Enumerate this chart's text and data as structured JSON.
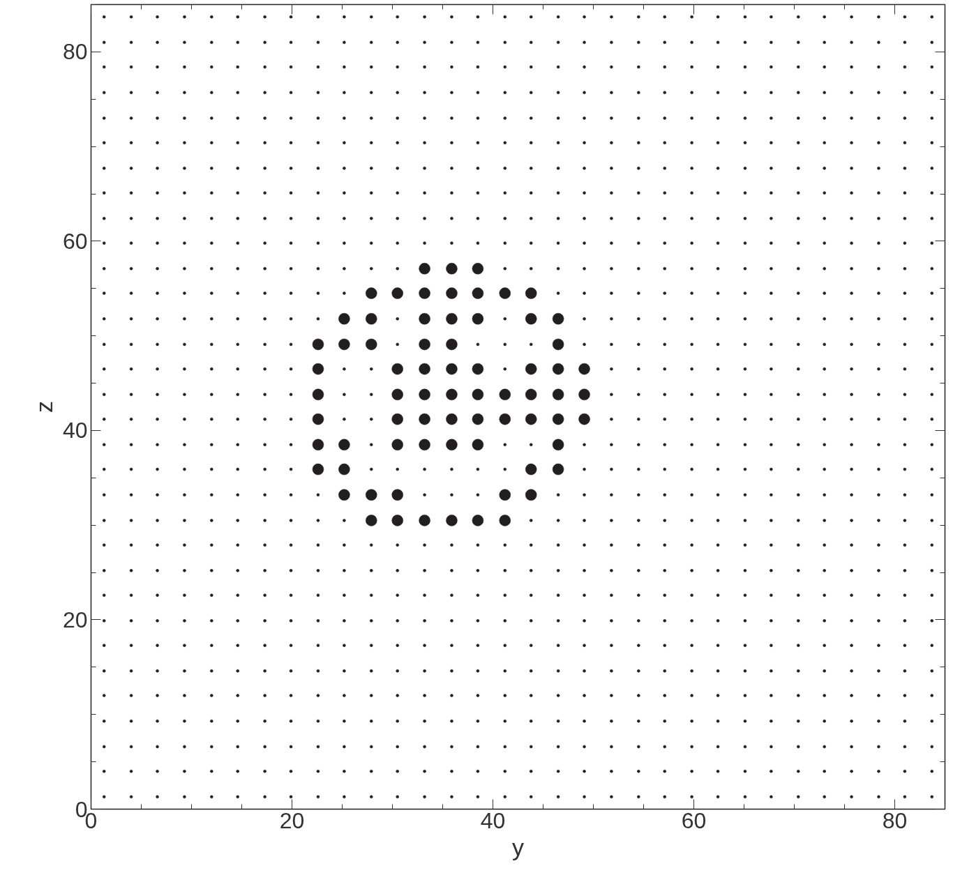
{
  "chart_data": {
    "type": "scatter",
    "xlabel": "y",
    "ylabel": "z",
    "xlim": [
      0,
      85
    ],
    "ylim": [
      0,
      85
    ],
    "xticks": [
      0,
      {
        "value": 5,
        "label": null
      },
      {
        "value": 10,
        "label": null
      },
      {
        "value": 15,
        "label": null
      },
      20,
      {
        "value": 25,
        "label": null
      },
      {
        "value": 30,
        "label": null
      },
      {
        "value": 35,
        "label": null
      },
      40,
      {
        "value": 45,
        "label": null
      },
      {
        "value": 50,
        "label": null
      },
      {
        "value": 55,
        "label": null
      },
      60,
      {
        "value": 65,
        "label": null
      },
      {
        "value": 70,
        "label": null
      },
      {
        "value": 75,
        "label": null
      },
      80,
      {
        "value": 85,
        "label": null
      }
    ],
    "yticks": [
      0,
      {
        "value": 5,
        "label": null
      },
      {
        "value": 10,
        "label": null
      },
      {
        "value": 15,
        "label": null
      },
      20,
      {
        "value": 25,
        "label": null
      },
      {
        "value": 30,
        "label": null
      },
      {
        "value": 35,
        "label": null
      },
      40,
      {
        "value": 45,
        "label": null
      },
      {
        "value": 50,
        "label": null
      },
      {
        "value": 55,
        "label": null
      },
      60,
      {
        "value": 65,
        "label": null
      },
      {
        "value": 70,
        "label": null
      },
      {
        "value": 75,
        "label": null
      },
      80,
      {
        "value": 85,
        "label": null
      }
    ],
    "series": [
      {
        "color": "#231f20",
        "x": [
          1.3,
          4.0,
          6.6,
          9.3,
          12.0,
          14.6,
          17.3,
          19.9,
          22.6,
          25.2,
          27.9,
          30.5,
          33.2,
          35.9,
          38.5,
          41.2,
          43.8,
          46.5,
          49.1,
          51.8,
          54.5,
          57.1,
          59.8,
          62.4,
          65.1,
          67.7,
          70.4,
          73.0,
          75.7,
          78.4,
          81.0,
          83.7
        ],
        "values": [
          1.3,
          1.3,
          1.3,
          1.3,
          1.3,
          1.3,
          1.3,
          1.3,
          1.3,
          1.3,
          1.3,
          1.3,
          1.3,
          1.3,
          1.3,
          1.3,
          1.3,
          1.3,
          1.3,
          1.3,
          1.3,
          1.3,
          1.3,
          1.3,
          1.3,
          1.3,
          1.3,
          1.3,
          1.3,
          1.3,
          1.3,
          1.3
        ]
      },
      {
        "color": "#231f20",
        "x": [
          1.3,
          4.0,
          6.6,
          9.3,
          12.0,
          14.6,
          17.3,
          19.9,
          22.6,
          25.2,
          27.9,
          30.5,
          33.2,
          35.9,
          38.5,
          41.2,
          43.8,
          46.5,
          49.1,
          51.8,
          54.5,
          57.1,
          59.8,
          62.4,
          65.1,
          67.7,
          70.4,
          73.0,
          75.7,
          78.4,
          81.0,
          83.7
        ],
        "values": [
          4.0,
          4.0,
          4.0,
          4.0,
          4.0,
          4.0,
          4.0,
          4.0,
          4.0,
          4.0,
          4.0,
          4.0,
          4.0,
          4.0,
          4.0,
          4.0,
          4.0,
          4.0,
          4.0,
          4.0,
          4.0,
          4.0,
          4.0,
          4.0,
          4.0,
          4.0,
          4.0,
          4.0,
          4.0,
          4.0,
          4.0,
          4.0
        ]
      },
      {
        "color": "#231f20",
        "x": [
          1.3,
          4.0,
          6.6,
          9.3,
          12.0,
          14.6,
          17.3,
          19.9,
          22.6,
          25.2,
          27.9,
          30.5,
          33.2,
          35.9,
          38.5,
          41.2,
          43.8,
          46.5,
          49.1,
          51.8,
          54.5,
          57.1,
          59.8,
          62.4,
          65.1,
          67.7,
          70.4,
          73.0,
          75.7,
          78.4,
          81.0,
          83.7
        ],
        "values": [
          6.6,
          6.6,
          6.6,
          6.6,
          6.6,
          6.6,
          6.6,
          6.6,
          6.6,
          6.6,
          6.6,
          6.6,
          6.6,
          6.6,
          6.6,
          6.6,
          6.6,
          6.6,
          6.6,
          6.6,
          6.6,
          6.6,
          6.6,
          6.6,
          6.6,
          6.6,
          6.6,
          6.6,
          6.6,
          6.6,
          6.6,
          6.6
        ]
      },
      {
        "color": "#231f20",
        "x": [
          1.3,
          4.0,
          6.6,
          9.3,
          12.0,
          14.6,
          17.3,
          19.9,
          22.6,
          25.2,
          27.9,
          30.5,
          33.2,
          35.9,
          38.5,
          41.2,
          43.8,
          46.5,
          49.1,
          51.8,
          54.5,
          57.1,
          59.8,
          62.4,
          65.1,
          67.7,
          70.4,
          73.0,
          75.7,
          78.4,
          81.0,
          83.7
        ],
        "values": [
          9.3,
          9.3,
          9.3,
          9.3,
          9.3,
          9.3,
          9.3,
          9.3,
          9.3,
          9.3,
          9.3,
          9.3,
          9.3,
          9.3,
          9.3,
          9.3,
          9.3,
          9.3,
          9.3,
          9.3,
          9.3,
          9.3,
          9.3,
          9.3,
          9.3,
          9.3,
          9.3,
          9.3,
          9.3,
          9.3,
          9.3,
          9.3
        ]
      },
      {
        "color": "#231f20",
        "x": [
          1.3,
          4.0,
          6.6,
          9.3,
          12.0,
          14.6,
          17.3,
          19.9,
          22.6,
          25.2,
          27.9,
          30.5,
          33.2,
          35.9,
          38.5,
          41.2,
          43.8,
          46.5,
          49.1,
          51.8,
          54.5,
          57.1,
          59.8,
          62.4,
          65.1,
          67.7,
          70.4,
          73.0,
          75.7,
          78.4,
          81.0,
          83.7
        ],
        "values": [
          12.0,
          12.0,
          12.0,
          12.0,
          12.0,
          12.0,
          12.0,
          12.0,
          12.0,
          12.0,
          12.0,
          12.0,
          12.0,
          12.0,
          12.0,
          12.0,
          12.0,
          12.0,
          12.0,
          12.0,
          12.0,
          12.0,
          12.0,
          12.0,
          12.0,
          12.0,
          12.0,
          12.0,
          12.0,
          12.0,
          12.0,
          12.0
        ]
      },
      {
        "color": "#231f20",
        "x": [
          1.3,
          4.0,
          6.6,
          9.3,
          12.0,
          14.6,
          17.3,
          19.9,
          22.6,
          25.2,
          27.9,
          30.5,
          33.2,
          35.9,
          38.5,
          41.2,
          43.8,
          46.5,
          49.1,
          51.8,
          54.5,
          57.1,
          59.8,
          62.4,
          65.1,
          67.7,
          70.4,
          73.0,
          75.7,
          78.4,
          81.0,
          83.7
        ],
        "values": [
          14.6,
          14.6,
          14.6,
          14.6,
          14.6,
          14.6,
          14.6,
          14.6,
          14.6,
          14.6,
          14.6,
          14.6,
          14.6,
          14.6,
          14.6,
          14.6,
          14.6,
          14.6,
          14.6,
          14.6,
          14.6,
          14.6,
          14.6,
          14.6,
          14.6,
          14.6,
          14.6,
          14.6,
          14.6,
          14.6,
          14.6,
          14.6
        ]
      },
      {
        "color": "#231f20",
        "x": [
          1.3,
          4.0,
          6.6,
          9.3,
          12.0,
          14.6,
          17.3,
          19.9,
          22.6,
          25.2,
          27.9,
          30.5,
          33.2,
          35.9,
          38.5,
          41.2,
          43.8,
          46.5,
          49.1,
          51.8,
          54.5,
          57.1,
          59.8,
          62.4,
          65.1,
          67.7,
          70.4,
          73.0,
          75.7,
          78.4,
          81.0,
          83.7
        ],
        "values": [
          17.3,
          17.3,
          17.3,
          17.3,
          17.3,
          17.3,
          17.3,
          17.3,
          17.3,
          17.3,
          17.3,
          17.3,
          17.3,
          17.3,
          17.3,
          17.3,
          17.3,
          17.3,
          17.3,
          17.3,
          17.3,
          17.3,
          17.3,
          17.3,
          17.3,
          17.3,
          17.3,
          17.3,
          17.3,
          17.3,
          17.3,
          17.3
        ]
      },
      {
        "color": "#231f20",
        "x": [
          1.3,
          4.0,
          6.6,
          9.3,
          12.0,
          14.6,
          17.3,
          19.9,
          22.6,
          25.2,
          27.9,
          30.5,
          33.2,
          35.9,
          38.5,
          41.2,
          43.8,
          46.5,
          49.1,
          51.8,
          54.5,
          57.1,
          59.8,
          62.4,
          65.1,
          67.7,
          70.4,
          73.0,
          75.7,
          78.4,
          81.0,
          83.7
        ],
        "values": [
          19.9,
          19.9,
          19.9,
          19.9,
          19.9,
          19.9,
          19.9,
          19.9,
          19.9,
          19.9,
          19.9,
          19.9,
          19.9,
          19.9,
          19.9,
          19.9,
          19.9,
          19.9,
          19.9,
          19.9,
          19.9,
          19.9,
          19.9,
          19.9,
          19.9,
          19.9,
          19.9,
          19.9,
          19.9,
          19.9,
          19.9,
          19.9
        ]
      },
      {
        "color": "#231f20",
        "x": [
          1.3,
          4.0,
          6.6,
          9.3,
          12.0,
          14.6,
          17.3,
          19.9,
          22.6,
          25.2,
          27.9,
          30.5,
          33.2,
          35.9,
          38.5,
          41.2,
          43.8,
          46.5,
          49.1,
          51.8,
          54.5,
          57.1,
          59.8,
          62.4,
          65.1,
          67.7,
          70.4,
          73.0,
          75.7,
          78.4,
          81.0,
          83.7
        ],
        "values": [
          22.6,
          22.6,
          22.6,
          22.6,
          22.6,
          22.6,
          22.6,
          22.6,
          22.6,
          22.6,
          22.6,
          22.6,
          22.6,
          22.6,
          22.6,
          22.6,
          22.6,
          22.6,
          22.6,
          22.6,
          22.6,
          22.6,
          22.6,
          22.6,
          22.6,
          22.6,
          22.6,
          22.6,
          22.6,
          22.6,
          22.6,
          22.6
        ]
      },
      {
        "color": "#231f20",
        "x": [
          1.3,
          4.0,
          6.6,
          9.3,
          12.0,
          14.6,
          17.3,
          19.9,
          22.6,
          25.2,
          27.9,
          30.5,
          33.2,
          35.9,
          38.5,
          41.2,
          43.8,
          46.5,
          49.1,
          51.8,
          54.5,
          57.1,
          59.8,
          62.4,
          65.1,
          67.7,
          70.4,
          73.0,
          75.7,
          78.4,
          81.0,
          83.7
        ],
        "values": [
          25.2,
          25.2,
          25.2,
          25.2,
          25.2,
          25.2,
          25.2,
          25.2,
          25.2,
          25.2,
          25.2,
          25.2,
          25.2,
          25.2,
          25.2,
          25.2,
          25.2,
          25.2,
          25.2,
          25.2,
          25.2,
          25.2,
          25.2,
          25.2,
          25.2,
          25.2,
          25.2,
          25.2,
          25.2,
          25.2,
          25.2,
          25.2
        ]
      },
      {
        "color": "#231f20",
        "x": [
          1.3,
          4.0,
          6.6,
          9.3,
          12.0,
          14.6,
          17.3,
          19.9,
          22.6,
          25.2,
          27.9,
          30.5,
          33.2,
          35.9,
          38.5,
          41.2,
          43.8,
          46.5,
          49.1,
          51.8,
          54.5,
          57.1,
          59.8,
          62.4,
          65.1,
          67.7,
          70.4,
          73.0,
          75.7,
          78.4,
          81.0,
          83.7
        ],
        "values": [
          27.9,
          27.9,
          27.9,
          27.9,
          27.9,
          27.9,
          27.9,
          27.9,
          27.9,
          27.9,
          27.9,
          27.9,
          27.9,
          27.9,
          27.9,
          27.9,
          27.9,
          27.9,
          27.9,
          27.9,
          27.9,
          27.9,
          27.9,
          27.9,
          27.9,
          27.9,
          27.9,
          27.9,
          27.9,
          27.9,
          27.9,
          27.9
        ]
      },
      {
        "color": "#231f20",
        "x": [
          1.3,
          4.0,
          6.6,
          9.3,
          12.0,
          14.6,
          17.3,
          19.9,
          22.6,
          25.2,
          43.8,
          46.5,
          49.1,
          51.8,
          54.5,
          57.1,
          59.8,
          62.4,
          65.1,
          67.7,
          70.4,
          73.0,
          75.7,
          78.4,
          81.0,
          83.7
        ],
        "values": [
          30.5,
          30.5,
          30.5,
          30.5,
          30.5,
          30.5,
          30.5,
          30.5,
          30.5,
          30.5,
          30.5,
          30.5,
          30.5,
          30.5,
          30.5,
          30.5,
          30.5,
          30.5,
          30.5,
          30.5,
          30.5,
          30.5,
          30.5,
          30.5,
          30.5,
          30.5
        ]
      },
      {
        "color": "#231f20",
        "x": [
          1.3,
          4.0,
          6.6,
          9.3,
          12.0,
          14.6,
          17.3,
          19.9,
          22.6,
          46.5,
          49.1,
          51.8,
          54.5,
          57.1,
          59.8,
          62.4,
          65.1,
          67.7,
          70.4,
          73.0,
          75.7,
          78.4,
          81.0,
          83.7
        ],
        "values": [
          33.2,
          33.2,
          33.2,
          33.2,
          33.2,
          33.2,
          33.2,
          33.2,
          33.2,
          33.2,
          33.2,
          33.2,
          33.2,
          33.2,
          33.2,
          33.2,
          33.2,
          33.2,
          33.2,
          33.2,
          33.2,
          33.2,
          33.2,
          33.2
        ]
      },
      {
        "color": "#231f20",
        "x": [
          1.3,
          4.0,
          6.6,
          9.3,
          12.0,
          14.6,
          17.3,
          19.9,
          49.1,
          51.8,
          54.5,
          57.1,
          59.8,
          62.4,
          65.1,
          67.7,
          70.4,
          73.0,
          75.7,
          78.4,
          81.0,
          83.7
        ],
        "values": [
          35.9,
          35.9,
          35.9,
          35.9,
          35.9,
          35.9,
          35.9,
          35.9,
          35.9,
          35.9,
          35.9,
          35.9,
          35.9,
          35.9,
          35.9,
          35.9,
          35.9,
          35.9,
          35.9,
          35.9,
          35.9,
          35.9
        ]
      },
      {
        "color": "#231f20",
        "x": [
          1.3,
          4.0,
          6.6,
          9.3,
          12.0,
          14.6,
          17.3,
          19.9,
          49.1,
          51.8,
          54.5,
          57.1,
          59.8,
          62.4,
          65.1,
          67.7,
          70.4,
          73.0,
          75.7,
          78.4,
          81.0,
          83.7
        ],
        "values": [
          38.5,
          38.5,
          38.5,
          38.5,
          38.5,
          38.5,
          38.5,
          38.5,
          38.5,
          38.5,
          38.5,
          38.5,
          38.5,
          38.5,
          38.5,
          38.5,
          38.5,
          38.5,
          38.5,
          38.5,
          38.5,
          38.5
        ]
      },
      {
        "color": "#231f20",
        "x": [
          1.3,
          4.0,
          6.6,
          9.3,
          12.0,
          14.6,
          17.3,
          19.9,
          51.8,
          54.5,
          57.1,
          59.8,
          62.4,
          65.1,
          67.7,
          70.4,
          73.0,
          75.7,
          78.4,
          81.0,
          83.7
        ],
        "values": [
          41.2,
          41.2,
          41.2,
          41.2,
          41.2,
          41.2,
          41.2,
          41.2,
          41.2,
          41.2,
          41.2,
          41.2,
          41.2,
          41.2,
          41.2,
          41.2,
          41.2,
          41.2,
          41.2,
          41.2,
          41.2
        ]
      },
      {
        "color": "#231f20",
        "x": [
          1.3,
          4.0,
          6.6,
          9.3,
          12.0,
          14.6,
          17.3,
          19.9,
          51.8,
          54.5,
          57.1,
          59.8,
          62.4,
          65.1,
          67.7,
          70.4,
          73.0,
          75.7,
          78.4,
          81.0,
          83.7
        ],
        "values": [
          43.8,
          43.8,
          43.8,
          43.8,
          43.8,
          43.8,
          43.8,
          43.8,
          43.8,
          43.8,
          43.8,
          43.8,
          43.8,
          43.8,
          43.8,
          43.8,
          43.8,
          43.8,
          43.8,
          43.8,
          43.8
        ]
      },
      {
        "color": "#231f20",
        "x": [
          1.3,
          4.0,
          6.6,
          9.3,
          12.0,
          14.6,
          17.3,
          19.9,
          51.8,
          54.5,
          57.1,
          59.8,
          62.4,
          65.1,
          67.7,
          70.4,
          73.0,
          75.7,
          78.4,
          81.0,
          83.7
        ],
        "values": [
          46.5,
          46.5,
          46.5,
          46.5,
          46.5,
          46.5,
          46.5,
          46.5,
          46.5,
          46.5,
          46.5,
          46.5,
          46.5,
          46.5,
          46.5,
          46.5,
          46.5,
          46.5,
          46.5,
          46.5,
          46.5
        ]
      },
      {
        "color": "#231f20",
        "x": [
          1.3,
          4.0,
          6.6,
          9.3,
          12.0,
          14.6,
          17.3,
          19.9,
          49.1,
          51.8,
          54.5,
          57.1,
          59.8,
          62.4,
          65.1,
          67.7,
          70.4,
          73.0,
          75.7,
          78.4,
          81.0,
          83.7
        ],
        "values": [
          49.1,
          49.1,
          49.1,
          49.1,
          49.1,
          49.1,
          49.1,
          49.1,
          49.1,
          49.1,
          49.1,
          49.1,
          49.1,
          49.1,
          49.1,
          49.1,
          49.1,
          49.1,
          49.1,
          49.1,
          49.1,
          49.1
        ]
      },
      {
        "color": "#231f20",
        "x": [
          1.3,
          4.0,
          6.6,
          9.3,
          12.0,
          14.6,
          17.3,
          19.9,
          22.6,
          49.1,
          51.8,
          54.5,
          57.1,
          59.8,
          62.4,
          65.1,
          67.7,
          70.4,
          73.0,
          75.7,
          78.4,
          81.0,
          83.7
        ],
        "values": [
          51.8,
          51.8,
          51.8,
          51.8,
          51.8,
          51.8,
          51.8,
          51.8,
          51.8,
          51.8,
          51.8,
          51.8,
          51.8,
          51.8,
          51.8,
          51.8,
          51.8,
          51.8,
          51.8,
          51.8,
          51.8,
          51.8,
          51.8
        ]
      },
      {
        "color": "#231f20",
        "x": [
          1.3,
          4.0,
          6.6,
          9.3,
          12.0,
          14.6,
          17.3,
          19.9,
          22.6,
          25.2,
          46.5,
          49.1,
          51.8,
          54.5,
          57.1,
          59.8,
          62.4,
          65.1,
          67.7,
          70.4,
          73.0,
          75.7,
          78.4,
          81.0,
          83.7
        ],
        "values": [
          54.5,
          54.5,
          54.5,
          54.5,
          54.5,
          54.5,
          54.5,
          54.5,
          54.5,
          54.5,
          54.5,
          54.5,
          54.5,
          54.5,
          54.5,
          54.5,
          54.5,
          54.5,
          54.5,
          54.5,
          54.5,
          54.5,
          54.5,
          54.5,
          54.5
        ]
      },
      {
        "color": "#231f20",
        "x": [
          1.3,
          4.0,
          6.6,
          9.3,
          12.0,
          14.6,
          17.3,
          19.9,
          22.6,
          25.2,
          27.9,
          30.5,
          41.2,
          43.8,
          46.5,
          49.1,
          51.8,
          54.5,
          57.1,
          59.8,
          62.4,
          65.1,
          67.7,
          70.4,
          73.0,
          75.7,
          78.4,
          81.0,
          83.7
        ],
        "values": [
          57.1,
          57.1,
          57.1,
          57.1,
          57.1,
          57.1,
          57.1,
          57.1,
          57.1,
          57.1,
          57.1,
          57.1,
          57.1,
          57.1,
          57.1,
          57.1,
          57.1,
          57.1,
          57.1,
          57.1,
          57.1,
          57.1,
          57.1,
          57.1,
          57.1,
          57.1,
          57.1,
          57.1,
          57.1
        ]
      },
      {
        "color": "#231f20",
        "x": [
          1.3,
          4.0,
          6.6,
          9.3,
          12.0,
          14.6,
          17.3,
          19.9,
          22.6,
          25.2,
          27.9,
          30.5,
          33.2,
          35.9,
          38.5,
          41.2,
          43.8,
          46.5,
          49.1,
          51.8,
          54.5,
          57.1,
          59.8,
          62.4,
          65.1,
          67.7,
          70.4,
          73.0,
          75.7,
          78.4,
          81.0,
          83.7
        ],
        "values": [
          59.8,
          59.8,
          59.8,
          59.8,
          59.8,
          59.8,
          59.8,
          59.8,
          59.8,
          59.8,
          59.8,
          59.8,
          59.8,
          59.8,
          59.8,
          59.8,
          59.8,
          59.8,
          59.8,
          59.8,
          59.8,
          59.8,
          59.8,
          59.8,
          59.8,
          59.8,
          59.8,
          59.8,
          59.8,
          59.8,
          59.8,
          59.8
        ]
      },
      {
        "color": "#231f20",
        "x": [
          1.3,
          4.0,
          6.6,
          9.3,
          12.0,
          14.6,
          17.3,
          19.9,
          22.6,
          25.2,
          27.9,
          30.5,
          33.2,
          35.9,
          38.5,
          41.2,
          43.8,
          46.5,
          49.1,
          51.8,
          54.5,
          57.1,
          59.8,
          62.4,
          65.1,
          67.7,
          70.4,
          73.0,
          75.7,
          78.4,
          81.0,
          83.7
        ],
        "values": [
          62.4,
          62.4,
          62.4,
          62.4,
          62.4,
          62.4,
          62.4,
          62.4,
          62.4,
          62.4,
          62.4,
          62.4,
          62.4,
          62.4,
          62.4,
          62.4,
          62.4,
          62.4,
          62.4,
          62.4,
          62.4,
          62.4,
          62.4,
          62.4,
          62.4,
          62.4,
          62.4,
          62.4,
          62.4,
          62.4,
          62.4,
          62.4
        ]
      },
      {
        "color": "#231f20",
        "x": [
          1.3,
          4.0,
          6.6,
          9.3,
          12.0,
          14.6,
          17.3,
          19.9,
          22.6,
          25.2,
          27.9,
          30.5,
          33.2,
          35.9,
          38.5,
          41.2,
          43.8,
          46.5,
          49.1,
          51.8,
          54.5,
          57.1,
          59.8,
          62.4,
          65.1,
          67.7,
          70.4,
          73.0,
          75.7,
          78.4,
          81.0,
          83.7
        ],
        "values": [
          65.1,
          65.1,
          65.1,
          65.1,
          65.1,
          65.1,
          65.1,
          65.1,
          65.1,
          65.1,
          65.1,
          65.1,
          65.1,
          65.1,
          65.1,
          65.1,
          65.1,
          65.1,
          65.1,
          65.1,
          65.1,
          65.1,
          65.1,
          65.1,
          65.1,
          65.1,
          65.1,
          65.1,
          65.1,
          65.1,
          65.1,
          65.1
        ]
      },
      {
        "color": "#231f20",
        "x": [
          1.3,
          4.0,
          6.6,
          9.3,
          12.0,
          14.6,
          17.3,
          19.9,
          22.6,
          25.2,
          27.9,
          30.5,
          33.2,
          35.9,
          38.5,
          41.2,
          43.8,
          46.5,
          49.1,
          51.8,
          54.5,
          57.1,
          59.8,
          62.4,
          65.1,
          67.7,
          70.4,
          73.0,
          75.7,
          78.4,
          81.0,
          83.7
        ],
        "values": [
          67.7,
          67.7,
          67.7,
          67.7,
          67.7,
          67.7,
          67.7,
          67.7,
          67.7,
          67.7,
          67.7,
          67.7,
          67.7,
          67.7,
          67.7,
          67.7,
          67.7,
          67.7,
          67.7,
          67.7,
          67.7,
          67.7,
          67.7,
          67.7,
          67.7,
          67.7,
          67.7,
          67.7,
          67.7,
          67.7,
          67.7,
          67.7
        ]
      },
      {
        "color": "#231f20",
        "x": [
          1.3,
          4.0,
          6.6,
          9.3,
          12.0,
          14.6,
          17.3,
          19.9,
          22.6,
          25.2,
          27.9,
          30.5,
          33.2,
          35.9,
          38.5,
          41.2,
          43.8,
          46.5,
          49.1,
          51.8,
          54.5,
          57.1,
          59.8,
          62.4,
          65.1,
          67.7,
          70.4,
          73.0,
          75.7,
          78.4,
          81.0,
          83.7
        ],
        "values": [
          70.4,
          70.4,
          70.4,
          70.4,
          70.4,
          70.4,
          70.4,
          70.4,
          70.4,
          70.4,
          70.4,
          70.4,
          70.4,
          70.4,
          70.4,
          70.4,
          70.4,
          70.4,
          70.4,
          70.4,
          70.4,
          70.4,
          70.4,
          70.4,
          70.4,
          70.4,
          70.4,
          70.4,
          70.4,
          70.4,
          70.4,
          70.4
        ]
      },
      {
        "color": "#231f20",
        "x": [
          1.3,
          4.0,
          6.6,
          9.3,
          12.0,
          14.6,
          17.3,
          19.9,
          22.6,
          25.2,
          27.9,
          30.5,
          33.2,
          35.9,
          38.5,
          41.2,
          43.8,
          46.5,
          49.1,
          51.8,
          54.5,
          57.1,
          59.8,
          62.4,
          65.1,
          67.7,
          70.4,
          73.0,
          75.7,
          78.4,
          81.0,
          83.7
        ],
        "values": [
          73.0,
          73.0,
          73.0,
          73.0,
          73.0,
          73.0,
          73.0,
          73.0,
          73.0,
          73.0,
          73.0,
          73.0,
          73.0,
          73.0,
          73.0,
          73.0,
          73.0,
          73.0,
          73.0,
          73.0,
          73.0,
          73.0,
          73.0,
          73.0,
          73.0,
          73.0,
          73.0,
          73.0,
          73.0,
          73.0,
          73.0,
          73.0
        ]
      },
      {
        "color": "#231f20",
        "x": [
          1.3,
          4.0,
          6.6,
          9.3,
          12.0,
          14.6,
          17.3,
          19.9,
          22.6,
          25.2,
          27.9,
          30.5,
          33.2,
          35.9,
          38.5,
          41.2,
          43.8,
          46.5,
          49.1,
          51.8,
          54.5,
          57.1,
          59.8,
          62.4,
          65.1,
          67.7,
          70.4,
          73.0,
          75.7,
          78.4,
          81.0,
          83.7
        ],
        "values": [
          75.7,
          75.7,
          75.7,
          75.7,
          75.7,
          75.7,
          75.7,
          75.7,
          75.7,
          75.7,
          75.7,
          75.7,
          75.7,
          75.7,
          75.7,
          75.7,
          75.7,
          75.7,
          75.7,
          75.7,
          75.7,
          75.7,
          75.7,
          75.7,
          75.7,
          75.7,
          75.7,
          75.7,
          75.7,
          75.7,
          75.7,
          75.7
        ]
      },
      {
        "color": "#231f20",
        "x": [
          1.3,
          4.0,
          6.6,
          9.3,
          12.0,
          14.6,
          17.3,
          19.9,
          22.6,
          25.2,
          27.9,
          30.5,
          33.2,
          35.9,
          38.5,
          41.2,
          43.8,
          46.5,
          49.1,
          51.8,
          54.5,
          57.1,
          59.8,
          62.4,
          65.1,
          67.7,
          70.4,
          73.0,
          75.7,
          78.4,
          81.0,
          83.7
        ],
        "values": [
          78.4,
          78.4,
          78.4,
          78.4,
          78.4,
          78.4,
          78.4,
          78.4,
          78.4,
          78.4,
          78.4,
          78.4,
          78.4,
          78.4,
          78.4,
          78.4,
          78.4,
          78.4,
          78.4,
          78.4,
          78.4,
          78.4,
          78.4,
          78.4,
          78.4,
          78.4,
          78.4,
          78.4,
          78.4,
          78.4,
          78.4,
          78.4
        ]
      },
      {
        "color": "#231f20",
        "x": [
          1.3,
          4.0,
          6.6,
          9.3,
          12.0,
          14.6,
          17.3,
          19.9,
          22.6,
          25.2,
          27.9,
          30.5,
          33.2,
          35.9,
          38.5,
          41.2,
          43.8,
          46.5,
          49.1,
          51.8,
          54.5,
          57.1,
          59.8,
          62.4,
          65.1,
          67.7,
          70.4,
          73.0,
          75.7,
          78.4,
          81.0,
          83.7
        ],
        "values": [
          81.0,
          81.0,
          81.0,
          81.0,
          81.0,
          81.0,
          81.0,
          81.0,
          81.0,
          81.0,
          81.0,
          81.0,
          81.0,
          81.0,
          81.0,
          81.0,
          81.0,
          81.0,
          81.0,
          81.0,
          81.0,
          81.0,
          81.0,
          81.0,
          81.0,
          81.0,
          81.0,
          81.0,
          81.0,
          81.0,
          81.0,
          81.0
        ]
      },
      {
        "color": "#231f20",
        "x": [
          1.3,
          4.0,
          6.6,
          9.3,
          12.0,
          14.6,
          17.3,
          19.9,
          22.6,
          25.2,
          27.9,
          30.5,
          33.2,
          35.9,
          38.5,
          41.2,
          43.8,
          46.5,
          49.1,
          51.8,
          54.5,
          57.1,
          59.8,
          62.4,
          65.1,
          67.7,
          70.4,
          73.0,
          75.7,
          78.4,
          81.0,
          83.7
        ],
        "values": [
          83.7,
          83.7,
          83.7,
          83.7,
          83.7,
          83.7,
          83.7,
          83.7,
          83.7,
          83.7,
          83.7,
          83.7,
          83.7,
          83.7,
          83.7,
          83.7,
          83.7,
          83.7,
          83.7,
          83.7,
          83.7,
          83.7,
          83.7,
          83.7,
          83.7,
          83.7,
          83.7,
          83.7,
          83.7,
          83.7,
          83.7,
          83.7
        ]
      },
      {
        "color": "#231f20",
        "x": [
          30.5,
          41.2,
          30.5,
          38.5,
          41.2,
          43.8,
          25.2,
          27.9,
          41.2,
          25.2,
          27.9,
          25.2,
          27.9,
          27.9,
          41.2,
          43.8,
          27.9,
          30.5,
          33.2,
          35.9,
          38.5,
          41.2,
          33.2,
          35.9,
          38.5
        ],
        "values": [
          51.8,
          51.8,
          49.1,
          49.1,
          49.1,
          49.1,
          46.5,
          46.5,
          46.5,
          43.8,
          43.8,
          41.2,
          41.2,
          38.5,
          38.5,
          38.5,
          35.9,
          35.9,
          35.9,
          35.9,
          35.9,
          35.9,
          33.2,
          33.2,
          33.2
        ]
      },
      {
        "type": "bubble",
        "color": "#231f20",
        "x": [
          33.2,
          35.9,
          38.5,
          27.9,
          30.5,
          33.2,
          35.9,
          38.5,
          41.2,
          43.8,
          25.2,
          27.9,
          33.2,
          35.9,
          38.5,
          43.8,
          46.5,
          22.6,
          25.2,
          27.9,
          33.2,
          35.9,
          46.5,
          22.6,
          30.5,
          33.2,
          35.9,
          38.5,
          43.8,
          46.5,
          49.1,
          22.6,
          30.5,
          33.2,
          35.9,
          38.5,
          41.2,
          43.8,
          46.5,
          49.1,
          22.6,
          30.5,
          33.2,
          35.9,
          38.5,
          41.2,
          43.8,
          46.5,
          49.1,
          22.6,
          25.2,
          30.5,
          33.2,
          35.9,
          38.5,
          46.5,
          22.6,
          25.2,
          43.8,
          46.5,
          25.2,
          27.9,
          30.5,
          41.2,
          43.8,
          27.9,
          30.5,
          33.2,
          35.9,
          38.5,
          41.2
        ],
        "values": [
          57.1,
          57.1,
          57.1,
          54.5,
          54.5,
          54.5,
          54.5,
          54.5,
          54.5,
          54.5,
          51.8,
          51.8,
          51.8,
          51.8,
          51.8,
          51.8,
          51.8,
          49.1,
          49.1,
          49.1,
          49.1,
          49.1,
          49.1,
          46.5,
          46.5,
          46.5,
          46.5,
          46.5,
          46.5,
          46.5,
          46.5,
          43.8,
          43.8,
          43.8,
          43.8,
          43.8,
          43.8,
          43.8,
          43.8,
          43.8,
          41.2,
          41.2,
          41.2,
          41.2,
          41.2,
          41.2,
          41.2,
          41.2,
          41.2,
          38.5,
          38.5,
          38.5,
          38.5,
          38.5,
          38.5,
          38.5,
          35.9,
          35.9,
          35.9,
          35.9,
          33.2,
          33.2,
          33.2,
          33.2,
          33.2,
          30.5,
          30.5,
          30.5,
          30.5,
          30.5,
          30.5
        ],
        "sizes": [
          1,
          1,
          1,
          1,
          1,
          1,
          1,
          1,
          1,
          1,
          1,
          1,
          1,
          1,
          1,
          1,
          1,
          1,
          1,
          1,
          1,
          1,
          1,
          1,
          1,
          1,
          1,
          1,
          1,
          1,
          1,
          1,
          1,
          1,
          1,
          1,
          1,
          1,
          1,
          1,
          1,
          1,
          1,
          1,
          1,
          1,
          1,
          1,
          1,
          1,
          1,
          1,
          1,
          1,
          1,
          1,
          1,
          1,
          1,
          1,
          1,
          1,
          1,
          1,
          1,
          1,
          1,
          1,
          1,
          1,
          1
        ]
      }
    ]
  }
}
